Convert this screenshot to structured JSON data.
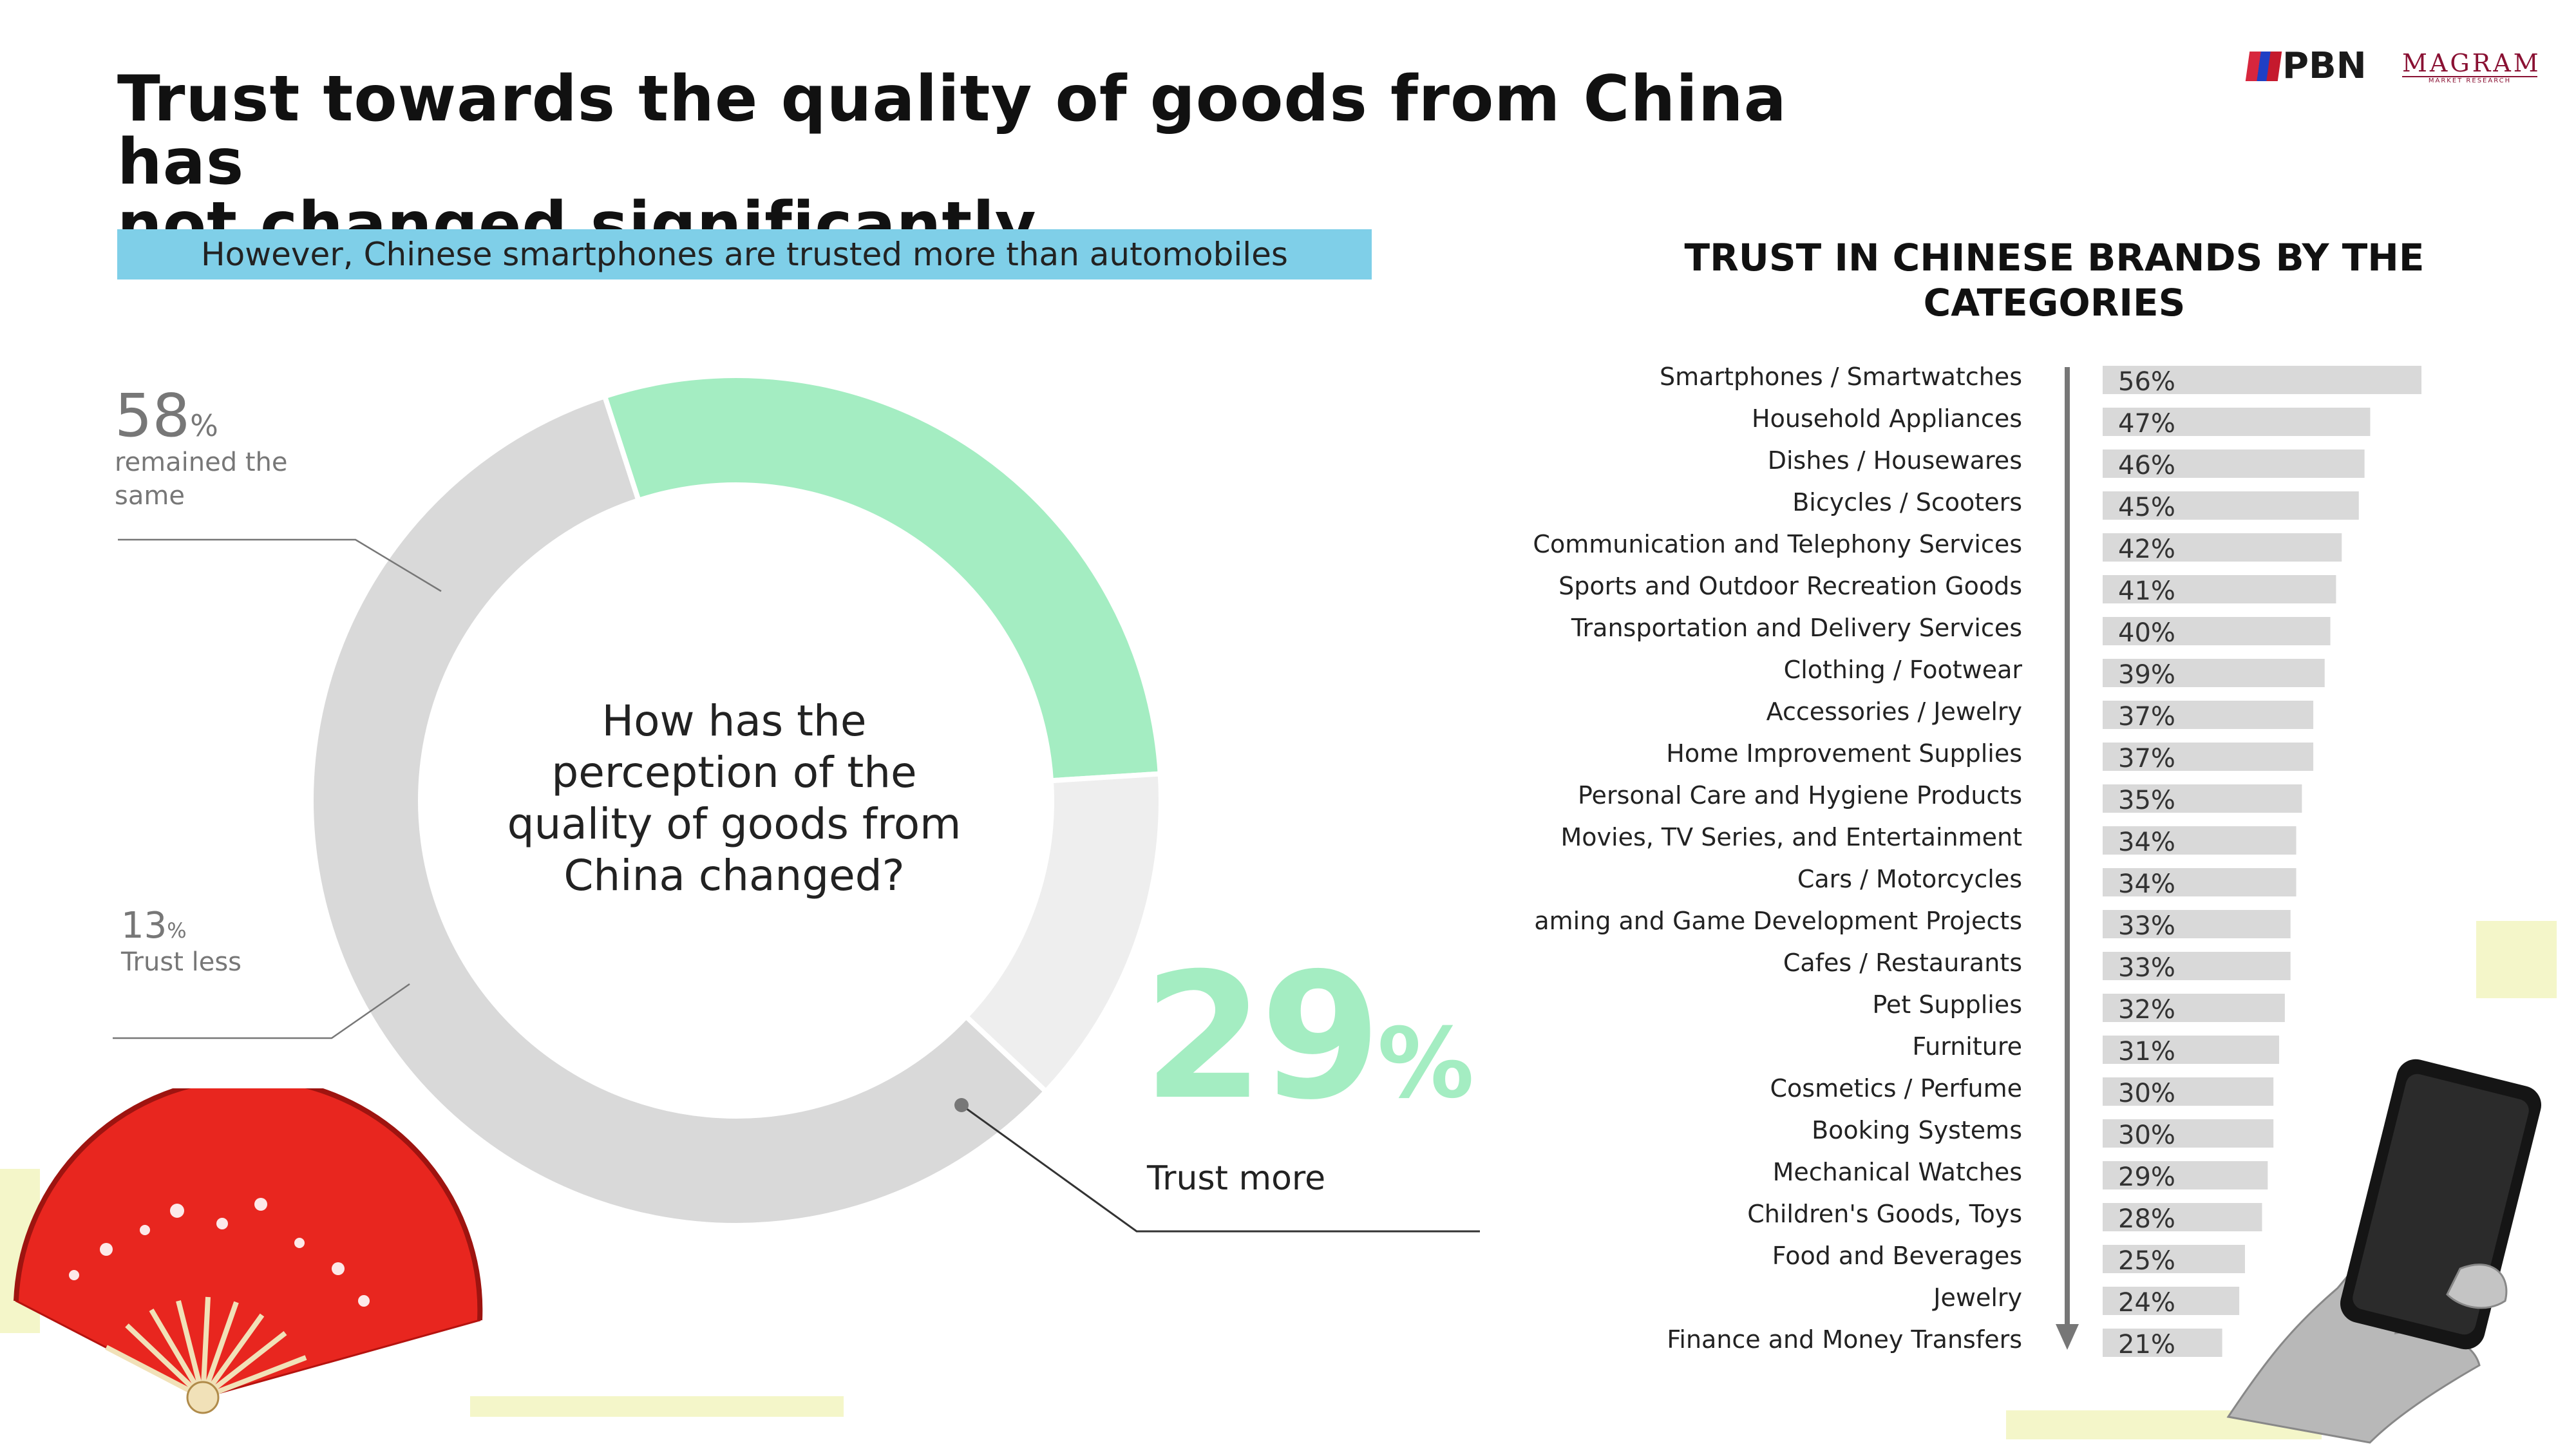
{
  "header": {
    "title_line1": "Trust towards the quality of goods from China has",
    "title_line2": "not changed significantly",
    "subtitle": "However, Chinese smartphones are trusted more than automobiles"
  },
  "logos": {
    "pbn": "PBN",
    "magram": "MAGRAM",
    "magram_sub": "MARKET RESEARCH"
  },
  "donut": {
    "question": [
      "How has the",
      "perception of the",
      "quality of goods from",
      "China changed?"
    ],
    "same": {
      "value": "58",
      "unit": "%",
      "label_line1": "remained the",
      "label_line2": "same"
    },
    "less": {
      "value": "13",
      "unit": "%",
      "label": "Trust less"
    },
    "more": {
      "value": "29",
      "unit": "%",
      "label": "Trust more"
    }
  },
  "chart_data": [
    {
      "type": "pie",
      "donut": true,
      "title": "How has the perception of the quality of goods from China changed?",
      "slices": [
        {
          "label": "remained the same",
          "value": 58,
          "color": "#d9d9d9"
        },
        {
          "label": "Trust more",
          "value": 29,
          "color": "#a4edc2"
        },
        {
          "label": "Trust less",
          "value": 13,
          "color": "#eeeeee"
        }
      ]
    },
    {
      "type": "bar",
      "orientation": "horizontal",
      "title": "TRUST IN CHINESE BRANDS BY THE CATEGORIES",
      "bar_color": "#d9d9d9",
      "categories": [
        "Smartphones / Smartwatches",
        "Household Appliances",
        "Dishes / Housewares",
        "Bicycles / Scooters",
        "Communication and Telephony Services",
        "Sports and Outdoor Recreation Goods",
        "Transportation and Delivery Services",
        "Clothing / Footwear",
        "Accessories / Jewelry",
        "Home Improvement Supplies",
        "Personal Care and Hygiene Products",
        "Movies, TV Series, and Entertainment",
        "Cars / Motorcycles",
        "Gaming and Game Development Projects",
        "Cafes / Restaurants",
        "Pet Supplies",
        "Furniture",
        "Cosmetics / Perfume",
        "Booking Systems",
        "Mechanical Watches",
        "Children's Goods, Toys",
        "Food and Beverages",
        "Jewelry",
        "Finance and Money Transfers"
      ],
      "values": [
        56,
        47,
        46,
        45,
        42,
        41,
        40,
        39,
        37,
        37,
        35,
        34,
        34,
        33,
        33,
        32,
        31,
        30,
        30,
        29,
        28,
        25,
        24,
        21
      ],
      "value_suffix": "%"
    }
  ]
}
